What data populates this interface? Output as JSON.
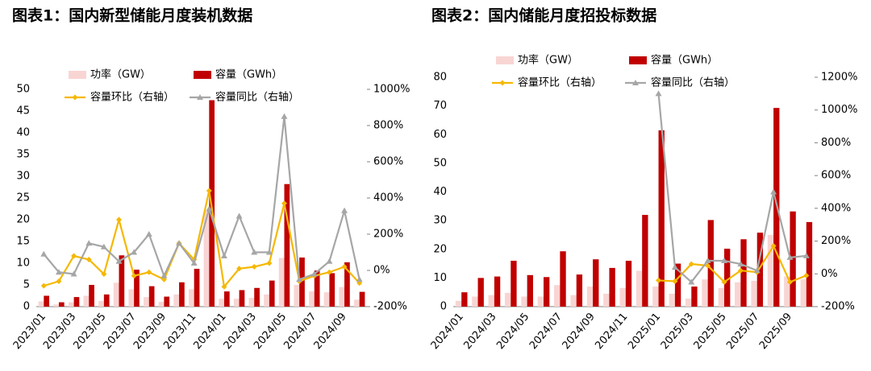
{
  "chart_data": [
    {
      "type": "combo",
      "title": "图表1：国内新型储能月度装机数据",
      "categories": [
        "2023/01",
        null,
        "2023/03",
        null,
        "2023/05",
        null,
        "2023/07",
        null,
        "2023/09",
        null,
        "2023/11",
        null,
        "2024/01",
        null,
        "2024/03",
        null,
        "2024/05",
        null,
        "2024/07",
        null,
        "2024/09",
        null
      ],
      "series": [
        {
          "name": "功率（GW）",
          "type": "bar",
          "color": "#f8d5d3",
          "values": [
            1.2,
            0.5,
            1,
            2.5,
            1.3,
            5.5,
            4,
            2.2,
            1.1,
            2.8,
            4,
            22,
            1.8,
            1.8,
            2,
            2.8,
            11.2,
            5,
            3.5,
            3.3,
            4.5,
            1.6
          ]
        },
        {
          "name": "容量（GWh）",
          "type": "bar",
          "color": "#c00000",
          "values": [
            2.5,
            1,
            2.2,
            5,
            2.8,
            11.8,
            8.5,
            4.7,
            2.3,
            5.6,
            8.7,
            47.5,
            3.5,
            3.8,
            4.3,
            6,
            28.2,
            11.3,
            8.3,
            7.7,
            10.2,
            3.4
          ]
        },
        {
          "name": "容量环比（右轴）",
          "type": "line",
          "axis": "y2",
          "marker": "diamond",
          "color": "#f5b800",
          "values": [
            -85,
            -60,
            80,
            60,
            -20,
            280,
            -30,
            -10,
            -50,
            150,
            60,
            440,
            -90,
            10,
            20,
            40,
            370,
            -60,
            -30,
            -10,
            20,
            -70
          ]
        },
        {
          "name": "容量同比（右轴）",
          "type": "line",
          "axis": "y2",
          "marker": "triangle",
          "color": "#a6a6a6",
          "values": [
            90,
            -10,
            -20,
            150,
            130,
            50,
            100,
            200,
            -30,
            150,
            40,
            340,
            80,
            300,
            100,
            100,
            850,
            -50,
            -20,
            50,
            330,
            -50
          ]
        }
      ],
      "ylim": [
        0,
        50
      ],
      "yticks": [
        0,
        5,
        10,
        15,
        20,
        25,
        30,
        35,
        40,
        45,
        50
      ],
      "y2lim": [
        -200,
        1000
      ],
      "y2ticks": [
        {
          "value": -200,
          "label": "-200%"
        },
        {
          "value": 0,
          "label": "0%"
        },
        {
          "value": 200,
          "label": "200%"
        },
        {
          "value": 400,
          "label": "400%"
        },
        {
          "value": 600,
          "label": "600%"
        },
        {
          "value": 800,
          "label": "800%"
        },
        {
          "value": 1000,
          "label": "1000%"
        }
      ]
    },
    {
      "type": "combo",
      "title": "图表2：国内储能月度招投标数据",
      "categories": [
        "2024/01",
        null,
        "2024/03",
        null,
        "2024/05",
        null,
        "2024/07",
        null,
        "2024/09",
        null,
        "2024/11",
        null,
        "2025/01",
        null,
        "2025/03",
        null,
        "2025/05",
        null,
        "2025/07",
        null,
        "2025/09",
        null
      ],
      "series": [
        {
          "name": "功率（GW）",
          "type": "bar",
          "color": "#f8d5d3",
          "values": [
            2,
            3.5,
            4,
            4.8,
            3.5,
            3.5,
            7.5,
            4,
            7,
            4.5,
            6.5,
            12.5,
            7,
            4.5,
            2.8,
            9.5,
            6.5,
            8.5,
            9,
            25,
            10.5,
            9.5
          ]
        },
        {
          "name": "容量（GWh）",
          "type": "bar",
          "color": "#c00000",
          "values": [
            5,
            10,
            10.5,
            16,
            11,
            10.3,
            19.3,
            11.2,
            16.5,
            13.5,
            16,
            32,
            61.5,
            15,
            7,
            30.2,
            20.2,
            23.5,
            25.8,
            69.3,
            33.2,
            29.5
          ]
        },
        {
          "name": "容量环比（右轴）",
          "type": "line",
          "axis": "y2",
          "marker": "diamond",
          "color": "#f5b800",
          "values": [
            null,
            null,
            null,
            null,
            null,
            null,
            null,
            null,
            null,
            null,
            null,
            null,
            -40,
            -45,
            60,
            50,
            -50,
            20,
            10,
            170,
            -50,
            -10
          ]
        },
        {
          "name": "容量同比（右轴）",
          "type": "line",
          "axis": "y2",
          "marker": "triangle",
          "color": "#a6a6a6",
          "values": [
            null,
            null,
            null,
            null,
            null,
            null,
            null,
            null,
            null,
            null,
            null,
            null,
            1100,
            40,
            -50,
            80,
            80,
            60,
            20,
            500,
            100,
            110
          ]
        }
      ],
      "ylim": [
        0,
        80
      ],
      "yticks": [
        0,
        10,
        20,
        30,
        40,
        50,
        60,
        70,
        80
      ],
      "y2lim": [
        -200,
        1200
      ],
      "y2ticks": [
        {
          "value": -200,
          "label": "-200%"
        },
        {
          "value": 0,
          "label": "0%"
        },
        {
          "value": 200,
          "label": "200%"
        },
        {
          "value": 400,
          "label": "400%"
        },
        {
          "value": 600,
          "label": "600%"
        },
        {
          "value": 800,
          "label": "800%"
        },
        {
          "value": 1000,
          "label": "1000%"
        },
        {
          "value": 1200,
          "label": "1200%"
        }
      ]
    }
  ]
}
